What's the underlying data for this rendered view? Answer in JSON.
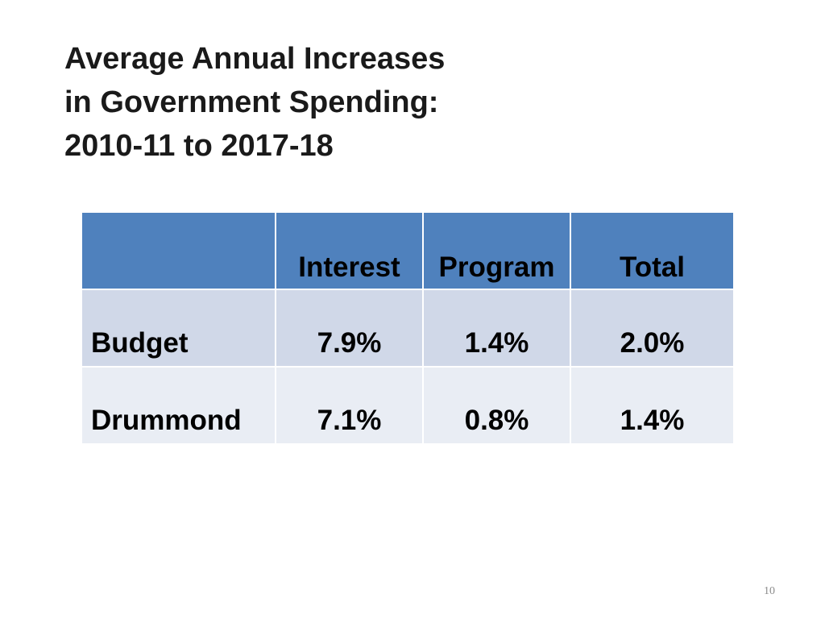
{
  "slide": {
    "title_lines": [
      "Average Annual Increases",
      "in Government Spending:",
      "2010-11 to 2017-18"
    ],
    "page_number": "10"
  },
  "table": {
    "header": [
      "",
      "Interest",
      "Program",
      "Total"
    ],
    "rows": [
      {
        "label": "Budget",
        "values": [
          "7.9%",
          "1.4%",
          "2.0%"
        ]
      },
      {
        "label": "Drummond",
        "values": [
          "7.1%",
          "0.8%",
          "1.4%"
        ]
      }
    ]
  },
  "colors": {
    "header_fill": "#4f81bd",
    "row_band_1": "#d0d8e8",
    "row_band_2": "#e9edf4"
  }
}
